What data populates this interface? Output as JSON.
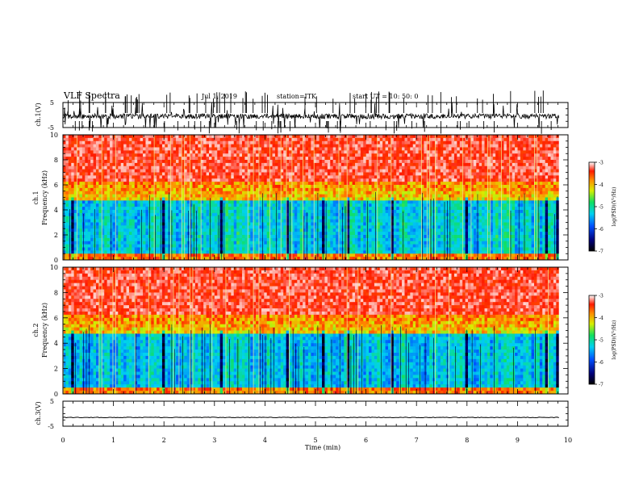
{
  "header": {
    "title": "VLF Spectra",
    "date": "Jul  1,  2019",
    "station": "station=ITK",
    "start": "start UT =   10: 50: 0"
  },
  "chart_data": [
    {
      "type": "line",
      "panel": "ch1-waveform",
      "ylabel": "ch.1(V)",
      "ylim": [
        -5,
        5
      ],
      "yticks": [
        "5",
        "-5"
      ],
      "color": "#000000",
      "x_range_min": [
        0,
        9.82
      ]
    },
    {
      "type": "heatmap",
      "panel": "ch1-spectrogram",
      "ylabel": "ch.1\nFrequency (kHz)",
      "ylim": [
        0,
        10
      ],
      "yticks": [
        "0",
        "2",
        "4",
        "6",
        "8",
        "10"
      ],
      "colorbar": {
        "label": "log(PSD)(V²/Hz)",
        "range": [
          -7,
          -3
        ],
        "ticks": [
          "-3",
          "-4",
          "-5",
          "-6",
          "-7"
        ]
      }
    },
    {
      "type": "heatmap",
      "panel": "ch2-spectrogram",
      "ylabel": "ch.2\nFrequency (kHz)",
      "ylim": [
        0,
        10
      ],
      "yticks": [
        "0",
        "2",
        "4",
        "6",
        "8",
        "10"
      ],
      "colorbar": {
        "label": "log(PSD)(V²/Hz)",
        "range": [
          -7,
          -3
        ],
        "ticks": [
          "-3",
          "-4",
          "-5",
          "-6",
          "-7"
        ]
      }
    },
    {
      "type": "line",
      "panel": "ch3-waveform",
      "ylabel": "ch.3(V)",
      "ylim": [
        -5,
        5
      ],
      "yticks": [
        "5",
        "-5"
      ],
      "level": -1.5,
      "color": "#000000"
    }
  ],
  "xaxis": {
    "label": "Time  (min)",
    "range": [
      0,
      10
    ],
    "ticks": [
      "0",
      "1",
      "2",
      "3",
      "4",
      "5",
      "6",
      "7",
      "8",
      "9",
      "10"
    ]
  }
}
